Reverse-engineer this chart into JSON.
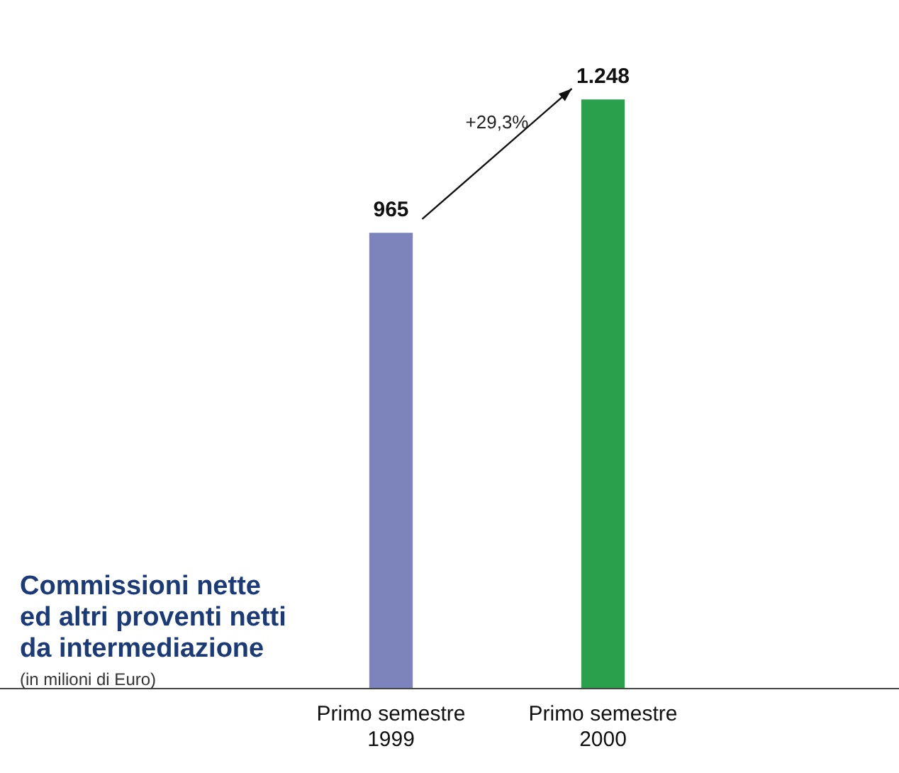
{
  "chart_data": {
    "type": "bar",
    "title": "Commissioni nette\ned altri proventi netti\nda intermediazione",
    "subtitle": "(in milioni di Euro)",
    "categories": [
      "Primo semestre\n1999",
      "Primo semestre\n2000"
    ],
    "values": [
      965,
      1248
    ],
    "value_labels": [
      "965",
      "1.248"
    ],
    "colors": [
      "#7d84bb",
      "#2a9f4c"
    ],
    "annotations": [
      "+29,3%"
    ]
  }
}
